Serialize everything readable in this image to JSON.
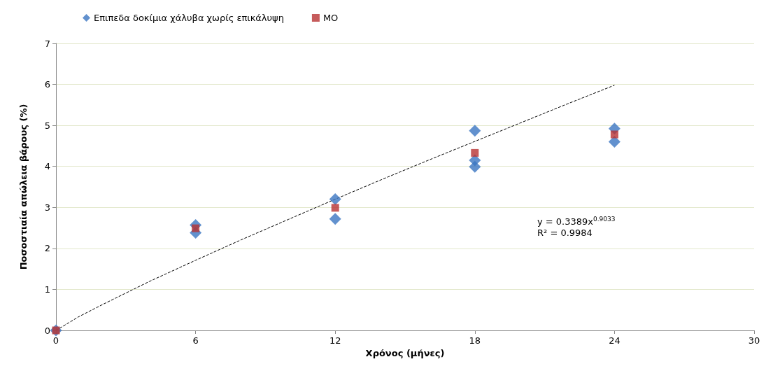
{
  "chart_data": {
    "type": "scatter",
    "xlabel": "Χρόνος (μήνες)",
    "ylabel": "Ποσοστιαία απώλεια βάρους (%)",
    "xlim": [
      0,
      30
    ],
    "xticks": [
      0,
      6,
      12,
      18,
      24,
      30
    ],
    "ylim": [
      0,
      7
    ],
    "yticks": [
      0,
      1,
      2,
      3,
      4,
      5,
      6,
      7
    ],
    "grid": "y",
    "legend": "top left",
    "series": [
      {
        "name": "Επιπεδα δοκίμια χάλυβα χωρίς επικάλυψη",
        "color": "#3b76c2",
        "marker": "diamond",
        "x": [
          0,
          6,
          6,
          12,
          12,
          18,
          18,
          18,
          24,
          24
        ],
        "values": [
          0,
          2.57,
          2.38,
          3.2,
          2.72,
          4.87,
          4.15,
          3.99,
          4.92,
          4.6
        ]
      },
      {
        "name": "MO",
        "color": "#b83232",
        "marker": "square",
        "x": [
          0,
          6,
          12,
          18,
          24
        ],
        "values": [
          0,
          2.49,
          2.99,
          4.33,
          4.78
        ]
      },
      {
        "type": "line",
        "color": "#000000",
        "line_style": "dashed",
        "marker": "none",
        "x": [
          0,
          1,
          2,
          3,
          4,
          6,
          8,
          10,
          12,
          14,
          16,
          18,
          20,
          22,
          24
        ],
        "values": [
          0,
          0.34,
          0.63,
          0.91,
          1.19,
          1.71,
          2.22,
          2.71,
          3.2,
          3.68,
          4.15,
          4.61,
          5.07,
          5.53,
          5.98
        ]
      }
    ],
    "annotations": [
      "y = 0.3389x$^{0.9033}$",
      "R² = 0.9984"
    ]
  }
}
